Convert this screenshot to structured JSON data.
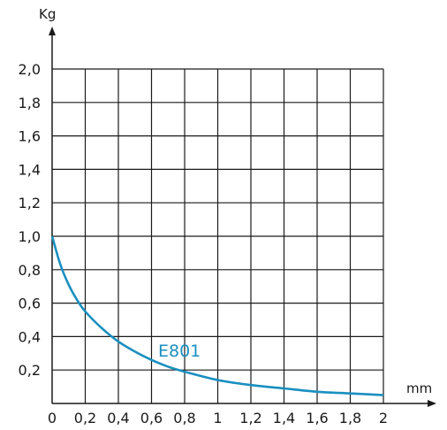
{
  "chart_data": {
    "type": "line",
    "xlabel": "mm",
    "ylabel": "Kg",
    "xlim": [
      0,
      2
    ],
    "ylim": [
      0,
      2
    ],
    "grid": true,
    "x_ticks": [
      "0",
      "0,2",
      "0,4",
      "0,6",
      "0,8",
      "1",
      "1,2",
      "1,4",
      "1,6",
      "1,8",
      "2"
    ],
    "y_ticks": [
      "2,0",
      "1,8",
      "1,6",
      "1,4",
      "1,2",
      "1,0",
      "0,8",
      "0,6",
      "0,4",
      "0,2"
    ],
    "series": [
      {
        "name": "E801",
        "color": "#1a8fc0",
        "x": [
          0,
          0.05,
          0.1,
          0.15,
          0.2,
          0.3,
          0.4,
          0.5,
          0.6,
          0.7,
          0.8,
          1.0,
          1.2,
          1.4,
          1.6,
          1.8,
          2.0
        ],
        "y": [
          1.0,
          0.83,
          0.71,
          0.62,
          0.55,
          0.45,
          0.37,
          0.31,
          0.26,
          0.22,
          0.19,
          0.14,
          0.11,
          0.09,
          0.07,
          0.06,
          0.05
        ]
      }
    ]
  }
}
